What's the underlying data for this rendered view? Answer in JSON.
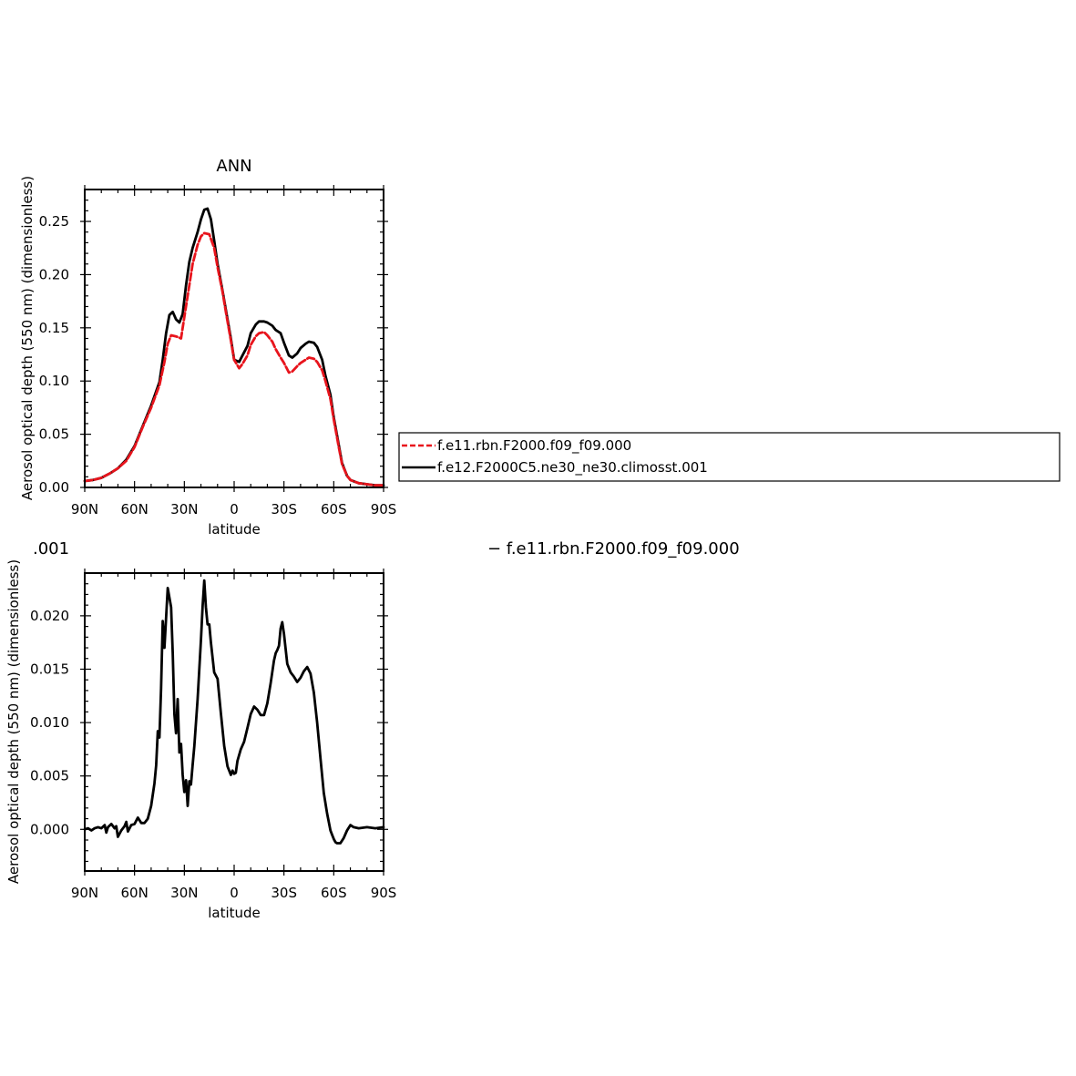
{
  "chart_data": [
    {
      "type": "line",
      "title": "ANN",
      "xlabel": "latitude",
      "ylabel": "Aerosol optical depth (550 nm) (dimensionless)",
      "xlim": [
        90,
        -90
      ],
      "ylim": [
        0,
        0.28
      ],
      "x_ticks": [
        90,
        60,
        30,
        0,
        -30,
        -60,
        -90
      ],
      "x_tick_labels": [
        "90N",
        "60N",
        "30N",
        "0",
        "30S",
        "60S",
        "90S"
      ],
      "y_ticks": [
        0,
        0.05,
        0.1,
        0.15,
        0.2,
        0.25
      ],
      "y_tick_labels": [
        "0.00",
        "0.05",
        "0.10",
        "0.15",
        "0.20",
        "0.25"
      ],
      "legend_position": "right, outside plot",
      "series": [
        {
          "name": "f.e11.rbn.F2000.f09_f09.000",
          "color": "#e8141c",
          "dash": "dashed",
          "x": [
            90,
            85,
            80,
            75,
            70,
            65,
            60,
            55,
            50,
            45,
            42,
            40,
            38,
            35,
            32,
            30,
            27,
            25,
            22,
            20,
            18,
            15,
            12,
            10,
            7,
            5,
            2,
            0,
            -3,
            -5,
            -8,
            -10,
            -13,
            -15,
            -18,
            -20,
            -23,
            -25,
            -28,
            -30,
            -33,
            -35,
            -38,
            -40,
            -43,
            -45,
            -48,
            -50,
            -53,
            -55,
            -58,
            -60,
            -63,
            -65,
            -68,
            -70,
            -75,
            -80,
            -85,
            -90
          ],
          "y": [
            0.006,
            0.007,
            0.009,
            0.013,
            0.018,
            0.025,
            0.038,
            0.057,
            0.075,
            0.096,
            0.118,
            0.135,
            0.143,
            0.142,
            0.14,
            0.16,
            0.19,
            0.21,
            0.228,
            0.236,
            0.239,
            0.238,
            0.225,
            0.207,
            0.184,
            0.165,
            0.138,
            0.12,
            0.112,
            0.116,
            0.124,
            0.134,
            0.142,
            0.145,
            0.146,
            0.143,
            0.137,
            0.13,
            0.122,
            0.117,
            0.108,
            0.109,
            0.114,
            0.117,
            0.12,
            0.122,
            0.121,
            0.118,
            0.11,
            0.1,
            0.083,
            0.064,
            0.038,
            0.022,
            0.011,
            0.007,
            0.004,
            0.003,
            0.002,
            0.002
          ]
        },
        {
          "name": "f.e12.F2000C5.ne30_ne30.climosst.001",
          "color": "#000000",
          "dash": "solid",
          "x": [
            90,
            85,
            80,
            75,
            70,
            65,
            60,
            55,
            50,
            45,
            43,
            41,
            39,
            37,
            35,
            33,
            31,
            29,
            27,
            25,
            22,
            20,
            18,
            16,
            14,
            12,
            10,
            7,
            5,
            2,
            0,
            -3,
            -5,
            -8,
            -10,
            -13,
            -15,
            -18,
            -20,
            -23,
            -25,
            -28,
            -30,
            -33,
            -35,
            -38,
            -40,
            -43,
            -45,
            -48,
            -50,
            -53,
            -55,
            -58,
            -60,
            -63,
            -65,
            -68,
            -70,
            -75,
            -80,
            -85,
            -90
          ],
          "y": [
            0.006,
            0.007,
            0.009,
            0.013,
            0.018,
            0.026,
            0.039,
            0.058,
            0.077,
            0.099,
            0.12,
            0.145,
            0.162,
            0.165,
            0.158,
            0.155,
            0.163,
            0.19,
            0.212,
            0.225,
            0.24,
            0.252,
            0.261,
            0.262,
            0.252,
            0.232,
            0.21,
            0.185,
            0.167,
            0.14,
            0.12,
            0.118,
            0.124,
            0.133,
            0.145,
            0.153,
            0.156,
            0.156,
            0.155,
            0.152,
            0.148,
            0.145,
            0.136,
            0.124,
            0.122,
            0.126,
            0.131,
            0.135,
            0.137,
            0.136,
            0.132,
            0.12,
            0.105,
            0.087,
            0.066,
            0.04,
            0.023,
            0.011,
            0.007,
            0.004,
            0.003,
            0.002,
            0.002
          ]
        }
      ]
    },
    {
      "type": "line",
      "title": "",
      "xlabel": "latitude",
      "ylabel": "Aerosol optical depth (550 nm) (dimensionless)",
      "xlim": [
        90,
        -90
      ],
      "ylim": [
        -0.0039,
        0.024
      ],
      "x_ticks": [
        90,
        60,
        30,
        0,
        -30,
        -60,
        -90
      ],
      "x_tick_labels": [
        "90N",
        "60N",
        "30N",
        "0",
        "30S",
        "60S",
        "90S"
      ],
      "y_ticks": [
        0,
        0.005,
        0.01,
        0.015,
        0.02
      ],
      "y_tick_labels": [
        "0.000",
        "0.005",
        "0.010",
        "0.015",
        "0.020"
      ],
      "left_title": ".001",
      "right_title": "− f.e11.rbn.F2000.f09_f09.000",
      "series": [
        {
          "name": "",
          "color": "#000000",
          "dash": "solid",
          "x": [
            90,
            88,
            86,
            84,
            82,
            80,
            78,
            77,
            76,
            74,
            72,
            71,
            70,
            68,
            66,
            65,
            64,
            62,
            60,
            58,
            56,
            54,
            52,
            50,
            48,
            47,
            46,
            45,
            44,
            43,
            42,
            41,
            40,
            38,
            37,
            36,
            35,
            34,
            33,
            32,
            31,
            30,
            29,
            28,
            27,
            26,
            25,
            24,
            22,
            20,
            19,
            18,
            17,
            16,
            15,
            14,
            12,
            10,
            8,
            6,
            4,
            2,
            1,
            0,
            -1,
            -2,
            -4,
            -6,
            -8,
            -10,
            -12,
            -14,
            -16,
            -18,
            -20,
            -22,
            -24,
            -25,
            -26,
            -27,
            -28,
            -29,
            -30,
            -32,
            -34,
            -36,
            -38,
            -40,
            -42,
            -44,
            -46,
            -48,
            -50,
            -52,
            -54,
            -56,
            -58,
            -59,
            -60,
            -61,
            -62,
            -64,
            -66,
            -68,
            -70,
            -72,
            -75,
            -80,
            -85,
            -90
          ],
          "y": [
            0.0,
            0.0001,
            -0.0001,
            0.0001,
            0.0002,
            0.0001,
            0.0004,
            -0.0003,
            0.0002,
            0.0005,
            0.0001,
            0.0003,
            -0.0007,
            -0.0001,
            0.0003,
            0.0007,
            -0.0002,
            0.0004,
            0.0005,
            0.0011,
            0.0006,
            0.0006,
            0.001,
            0.0022,
            0.0043,
            0.006,
            0.0092,
            0.0086,
            0.0132,
            0.0195,
            0.017,
            0.0198,
            0.0226,
            0.0208,
            0.0165,
            0.0108,
            0.009,
            0.0122,
            0.0072,
            0.008,
            0.0051,
            0.0035,
            0.0046,
            0.0022,
            0.0045,
            0.0042,
            0.006,
            0.0078,
            0.0122,
            0.0178,
            0.0209,
            0.0233,
            0.0208,
            0.0192,
            0.0192,
            0.0175,
            0.0147,
            0.0141,
            0.0109,
            0.0078,
            0.0059,
            0.0051,
            0.0055,
            0.0052,
            0.0053,
            0.0064,
            0.0075,
            0.0082,
            0.0095,
            0.0108,
            0.0115,
            0.0112,
            0.0107,
            0.0107,
            0.0118,
            0.0137,
            0.0158,
            0.0165,
            0.0168,
            0.0172,
            0.0188,
            0.0194,
            0.0183,
            0.0155,
            0.0147,
            0.0143,
            0.0138,
            0.0142,
            0.0148,
            0.0152,
            0.0146,
            0.0128,
            0.01,
            0.0066,
            0.0034,
            0.0015,
            -0.0001,
            -0.0005,
            -0.0009,
            -0.0012,
            -0.0013,
            -0.0013,
            -0.0008,
            -0.0001,
            0.0004,
            0.0002,
            0.0001,
            0.0002,
            0.0001,
            0.0002
          ]
        }
      ]
    }
  ]
}
